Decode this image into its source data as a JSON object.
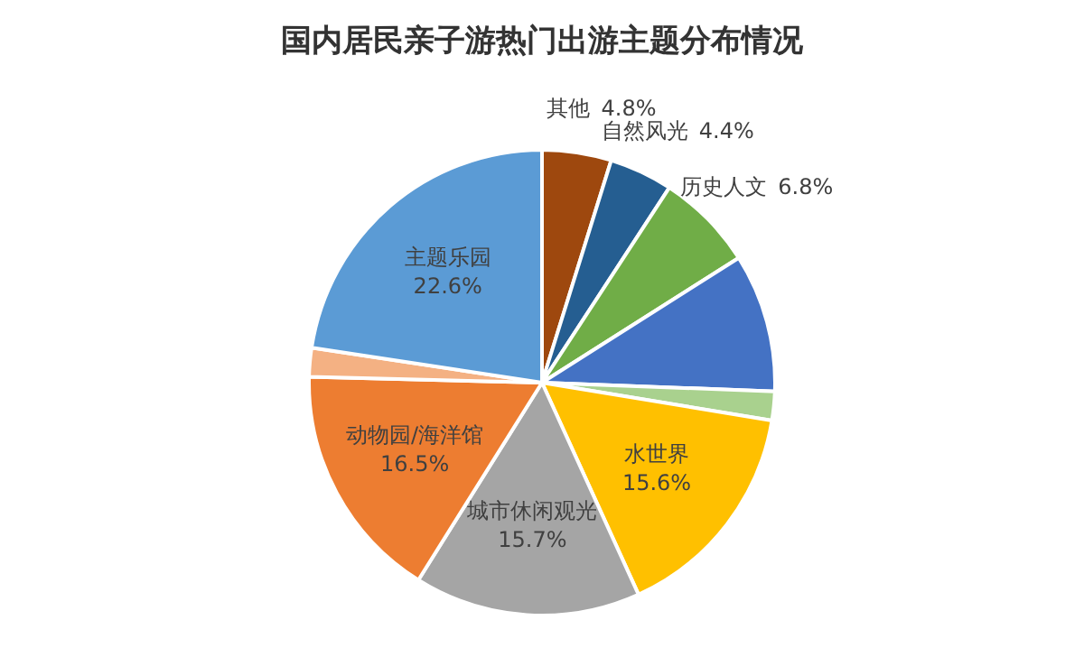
{
  "chart_data": {
    "type": "pie",
    "title": "国内居民亲子游热门出游主题分布情况",
    "categories": [
      "其他",
      "自然风光",
      "历史人文",
      null,
      null,
      "水世界",
      "城市休闲观光",
      "动物园/海洋馆",
      null,
      "主题乐园"
    ],
    "values": [
      4.8,
      4.4,
      6.8,
      9.6,
      2.0,
      15.6,
      15.7,
      16.5,
      2.0,
      22.6
    ],
    "value_labels": [
      "4.8%",
      "4.4%",
      "6.8%",
      null,
      null,
      "15.6%",
      "15.7%",
      "16.5%",
      null,
      "22.6%"
    ],
    "colors": [
      "#9e480e",
      "#255e91",
      "#70ad47",
      "#4472c4",
      "#a9d18e",
      "#ffc000",
      "#a5a5a5",
      "#ed7d31",
      "#f4b183",
      "#5b9bd5"
    ],
    "legend": false
  }
}
